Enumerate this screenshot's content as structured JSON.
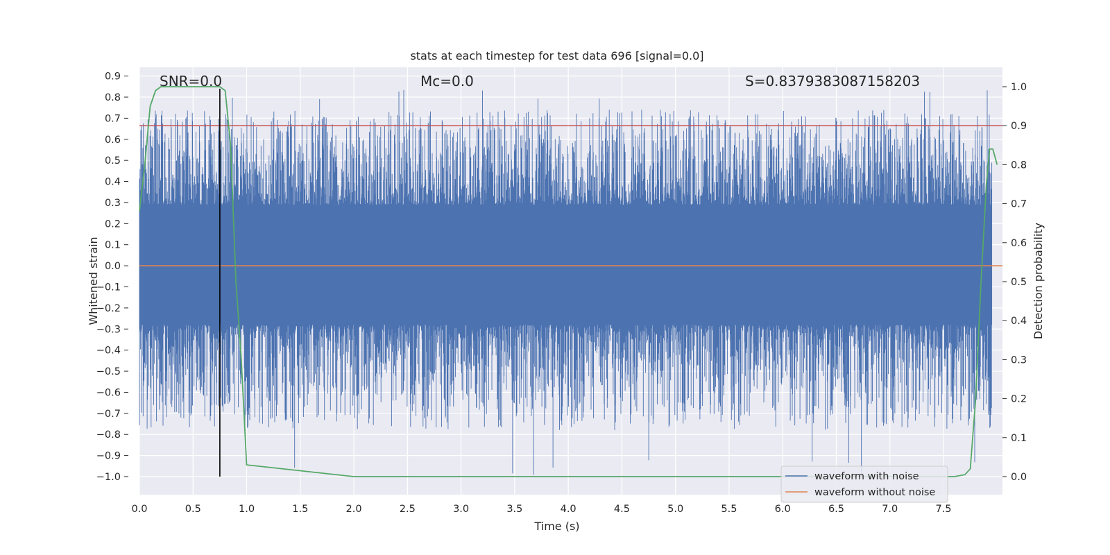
{
  "chart_data": {
    "type": "line",
    "title": "stats at each timestep for test data 696 [signal=0.0]",
    "xlabel": "Time (s)",
    "ylabel": "Whitened strain",
    "y2label": "Detection probability",
    "xlim": [
      0.0,
      8.0
    ],
    "ylim": [
      -1.0,
      0.9
    ],
    "y2lim": [
      0.0,
      1.0
    ],
    "x_ticks": [
      "0.0",
      "0.5",
      "1.0",
      "1.5",
      "2.0",
      "2.5",
      "3.0",
      "3.5",
      "4.0",
      "4.5",
      "5.0",
      "5.5",
      "6.0",
      "6.5",
      "7.0",
      "7.5"
    ],
    "y_ticks": [
      "0.9",
      "0.8",
      "0.7",
      "0.6",
      "0.5",
      "0.4",
      "0.3",
      "0.2",
      "0.1",
      "0.0",
      "−0.1",
      "−0.2",
      "−0.3",
      "−0.4",
      "−0.5",
      "−0.6",
      "−0.7",
      "−0.8",
      "−0.9",
      "−1.0"
    ],
    "y2_ticks": [
      "1.0",
      "0.9",
      "0.8",
      "0.7",
      "0.6",
      "0.5",
      "0.4",
      "0.3",
      "0.2",
      "0.1",
      "0.0"
    ],
    "grid": true,
    "legend_position": "lower-right",
    "annotations": {
      "snr": "SNR=0.0",
      "mc": "Mᴄ=0.0",
      "s": "S=0.8379383087158203"
    },
    "series": [
      {
        "name": "waveform with noise",
        "color": "#4c72b0",
        "noise_band_typical": [
          -0.28,
          0.29
        ],
        "extremes": [
          -1.0,
          0.84
        ]
      },
      {
        "name": "waveform without noise",
        "color": "#dd8452",
        "values": [
          0.0
        ]
      }
    ],
    "threshold_line": {
      "axis": "y2",
      "value": 0.9,
      "color": "#c44e52"
    },
    "marker_line": {
      "x": 0.75,
      "y_from": -1.0,
      "y_to": 0.84,
      "color": "#000000"
    },
    "probability": {
      "color": "#55a868",
      "x": [
        0.0,
        0.05,
        0.1,
        0.15,
        0.2,
        0.3,
        0.4,
        0.5,
        0.6,
        0.7,
        0.75,
        0.8,
        0.85,
        0.9,
        0.95,
        1.0,
        2.0,
        3.0,
        4.0,
        5.0,
        6.0,
        7.0,
        7.5,
        7.6,
        7.7,
        7.75,
        7.8,
        7.85,
        7.9,
        7.93,
        7.96,
        8.0
      ],
      "values": [
        0.68,
        0.8,
        0.95,
        0.99,
        1.0,
        1.0,
        1.0,
        1.0,
        1.0,
        1.0,
        1.0,
        0.99,
        0.85,
        0.5,
        0.3,
        0.03,
        0.0,
        0.0,
        0.0,
        0.0,
        0.0,
        0.0,
        0.0,
        0.0,
        0.005,
        0.02,
        0.2,
        0.5,
        0.75,
        0.84,
        0.84,
        0.8
      ]
    }
  }
}
